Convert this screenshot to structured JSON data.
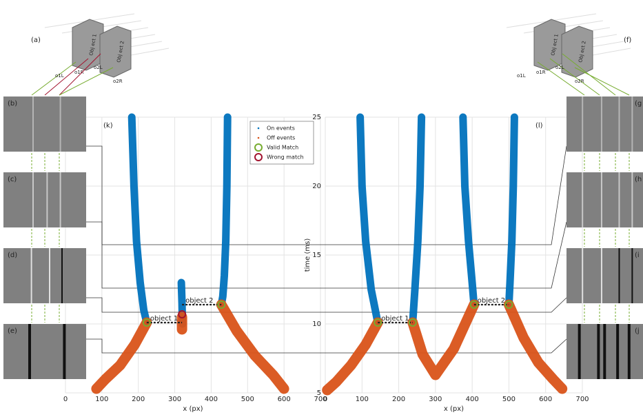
{
  "chart_data": [
    {
      "type": "scatter",
      "panel_label": "(k)",
      "xlabel": "x (px)",
      "xlim": [
        0,
        700
      ],
      "xticks": [
        0,
        100,
        200,
        300,
        400,
        500,
        600,
        700
      ],
      "ylim": [
        5,
        25
      ],
      "grid": true,
      "series": [
        {
          "name": "On events",
          "color": "#0072bd",
          "marker": ".",
          "x": [
            182,
            188,
            195,
            205,
            215,
            223,
            null,
            445,
            443,
            440,
            436,
            432,
            428,
            null,
            318,
            320,
            321
          ],
          "y": [
            25,
            20,
            16,
            13,
            11,
            10.1,
            null,
            25,
            20,
            16,
            13.5,
            12,
            11.4,
            null,
            13,
            11.5,
            10
          ]
        },
        {
          "name": "Off events",
          "color": "#d95319",
          "marker": ".",
          "x": [
            223,
            190,
            150,
            110,
            85,
            null,
            428,
            470,
            520,
            570,
            600,
            null,
            320,
            320
          ],
          "y": [
            10.1,
            8.5,
            7,
            6,
            5.3,
            null,
            11.4,
            9.5,
            7.7,
            6.3,
            5.3,
            null,
            10.5,
            9.6
          ]
        },
        {
          "name": "Valid Match",
          "color": "#77ac30",
          "marker": "o",
          "x": [
            223,
            428
          ],
          "y": [
            10.1,
            11.4
          ]
        },
        {
          "name": "Wrong match",
          "color": "#a2142f",
          "marker": "o",
          "x": [
            320
          ],
          "y": [
            10.7
          ]
        }
      ],
      "links": [
        {
          "text": "object 1",
          "x": [
            223,
            320
          ],
          "y": [
            10.1,
            10.1
          ]
        },
        {
          "text": "object 2",
          "x": [
            320,
            428
          ],
          "y": [
            11.4,
            11.4
          ]
        }
      ]
    },
    {
      "type": "scatter",
      "panel_label": "(l)",
      "xlabel": "x (px)",
      "ylabel": "time (ms)",
      "xlim": [
        0,
        700
      ],
      "xticks": [
        0,
        100,
        200,
        300,
        400,
        500,
        600,
        700
      ],
      "ylim": [
        5,
        25
      ],
      "yticks": [
        5,
        10,
        15,
        20,
        25
      ],
      "grid": true,
      "series": [
        {
          "color": "#0072bd",
          "marker": ".",
          "x": [
            95,
            100,
            110,
            125,
            143,
            null,
            262,
            258,
            252,
            244,
            238,
            null,
            375,
            380,
            390,
            400,
            405,
            null,
            515,
            512,
            508,
            503,
            500
          ],
          "y": [
            25,
            20,
            16,
            12.5,
            10.1,
            null,
            25,
            20,
            16,
            12.5,
            10.1,
            null,
            25,
            20,
            16,
            13,
            11.4,
            null,
            25,
            20,
            16,
            13,
            11.4
          ]
        },
        {
          "color": "#d95319",
          "marker": ".",
          "x": [
            143,
            110,
            70,
            30,
            5,
            null,
            238,
            265,
            300,
            350,
            405,
            null,
            500,
            540,
            580,
            620,
            645
          ],
          "y": [
            10.1,
            8.5,
            7,
            5.8,
            5.2,
            null,
            10.1,
            7.8,
            6.3,
            8.2,
            11.4,
            null,
            11.4,
            9,
            7.2,
            6,
            5.3
          ]
        },
        {
          "color": "#77ac30",
          "marker": "o",
          "x": [
            143,
            238,
            405,
            500
          ],
          "y": [
            10.1,
            10.1,
            11.4,
            11.4
          ]
        }
      ],
      "links": [
        {
          "text": "object 1",
          "x": [
            143,
            238
          ],
          "y": [
            10.1,
            10.1
          ]
        },
        {
          "text": "object 2",
          "x": [
            405,
            500
          ],
          "y": [
            11.4,
            11.4
          ]
        }
      ]
    }
  ],
  "panels": {
    "a": "(a)",
    "f": "(f)",
    "left": [
      "(b)",
      "(c)",
      "(d)",
      "(e)"
    ],
    "right": [
      "(g",
      "(h",
      "(i",
      "(j"
    ],
    "objects": [
      "Obj ect 1",
      "Obj ect 2"
    ],
    "rays": [
      "o1L",
      "o1R",
      "o2L",
      "o2R"
    ]
  }
}
